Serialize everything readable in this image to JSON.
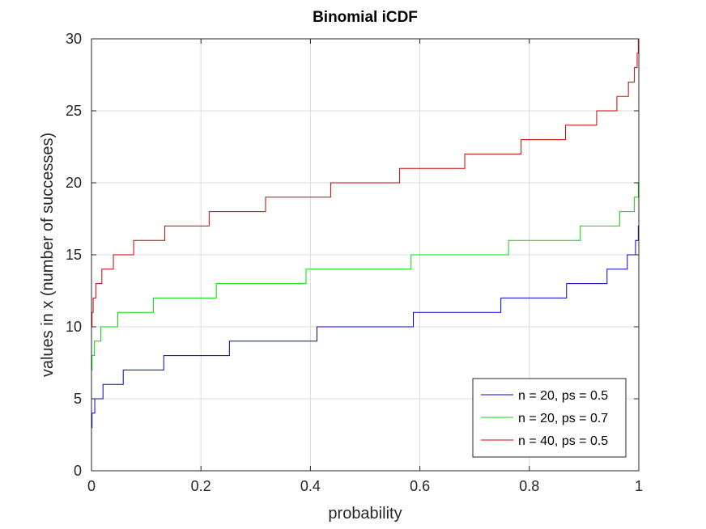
{
  "chart_data": {
    "type": "line",
    "step": true,
    "title": "Binomial iCDF",
    "xlabel": "probability",
    "ylabel": "values in x (number of successes)",
    "xlim": [
      0,
      1
    ],
    "ylim": [
      0,
      30
    ],
    "xticks": [
      0,
      0.2,
      0.4,
      0.6,
      0.8,
      1
    ],
    "xtick_labels": [
      "0",
      "0.2",
      "0.4",
      "0.6",
      "0.8",
      "1"
    ],
    "yticks": [
      0,
      5,
      10,
      15,
      20,
      25,
      30
    ],
    "ytick_labels": [
      "0",
      "5",
      "10",
      "15",
      "20",
      "25",
      "30"
    ],
    "grid": true,
    "legend_position": "bottom-right",
    "series": [
      {
        "name": "n = 20, ps = 0.5",
        "color": "#0000cc",
        "x": [
          0,
          0.001,
          0.006,
          0.021,
          0.058,
          0.132,
          0.252,
          0.412,
          0.588,
          0.748,
          0.868,
          0.942,
          0.979,
          0.994,
          0.999,
          1.0
        ],
        "y": [
          3,
          4,
          5,
          6,
          7,
          8,
          9,
          10,
          11,
          12,
          13,
          14,
          15,
          16,
          17,
          17
        ]
      },
      {
        "name": "n = 20, ps = 0.7",
        "color": "#00dd00",
        "x": [
          0,
          0.001,
          0.005,
          0.017,
          0.048,
          0.113,
          0.228,
          0.392,
          0.584,
          0.762,
          0.893,
          0.965,
          0.992,
          0.999,
          1.0
        ],
        "y": [
          7,
          8,
          9,
          10,
          11,
          12,
          13,
          14,
          15,
          16,
          17,
          18,
          19,
          20,
          20
        ]
      },
      {
        "name": "n = 40, ps = 0.5",
        "color": "#cc0000",
        "x": [
          0,
          0.001,
          0.003,
          0.008,
          0.019,
          0.04,
          0.077,
          0.134,
          0.215,
          0.318,
          0.437,
          0.563,
          0.682,
          0.785,
          0.866,
          0.923,
          0.96,
          0.981,
          0.992,
          0.997,
          0.999,
          1.0
        ],
        "y": [
          10,
          11,
          12,
          13,
          14,
          15,
          16,
          17,
          18,
          19,
          20,
          21,
          22,
          23,
          24,
          25,
          26,
          27,
          28,
          29,
          30,
          30
        ]
      }
    ]
  }
}
